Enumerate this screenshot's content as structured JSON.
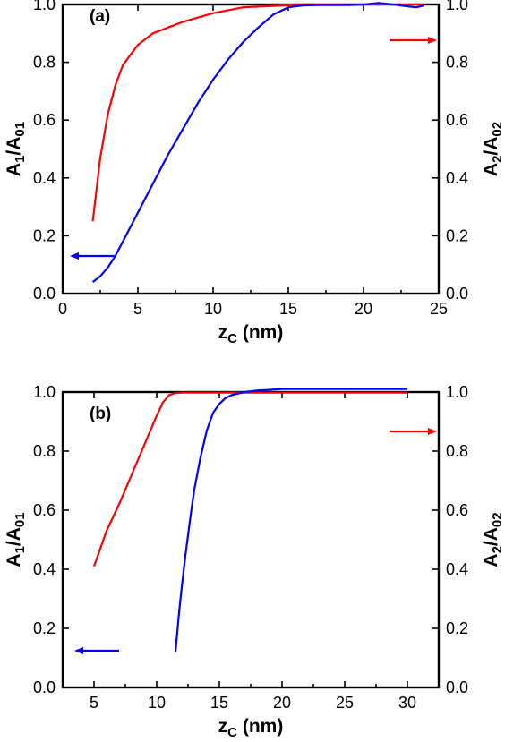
{
  "chart_data": [
    {
      "type": "line",
      "panel_label": "(a)",
      "xlim": [
        0,
        25
      ],
      "ylim": [
        0,
        1.0
      ],
      "x_ticks": [
        0,
        5,
        10,
        15,
        20,
        25
      ],
      "y_ticks": [
        0.0,
        0.2,
        0.4,
        0.6,
        0.8,
        1.0
      ],
      "xlabel": {
        "main": "z",
        "sub": "C",
        "unit": " (nm)"
      },
      "ylabel_left": {
        "a": "A",
        "a_sub": "1",
        "slash": "/A",
        "b_sub": "01"
      },
      "ylabel_right": {
        "a": "A",
        "a_sub": "2",
        "slash": "/A",
        "b_sub": "02"
      },
      "series": [
        {
          "color": "#ff0000",
          "axis": "right",
          "x": [
            2.0,
            2.5,
            3.0,
            3.5,
            4.0,
            5.0,
            6.0,
            7.0,
            8.0,
            10.0,
            12.0,
            14.0,
            16.0,
            18.0,
            20.0,
            22.0,
            24.0
          ],
          "y": [
            0.25,
            0.47,
            0.62,
            0.72,
            0.79,
            0.86,
            0.9,
            0.92,
            0.94,
            0.97,
            0.99,
            0.995,
            1.0,
            1.0,
            1.0,
            1.0,
            1.0
          ]
        },
        {
          "color": "#0000ff",
          "axis": "left",
          "x": [
            2.0,
            2.5,
            3.0,
            3.5,
            4.0,
            5.0,
            6.0,
            7.0,
            8.0,
            9.0,
            10.0,
            11.0,
            12.0,
            13.0,
            14.0,
            15.0,
            16.0,
            17.0,
            18.0,
            19.0,
            20.0,
            21.0,
            22.0,
            23.0,
            23.5,
            24.0
          ],
          "y": [
            0.04,
            0.06,
            0.09,
            0.13,
            0.18,
            0.28,
            0.38,
            0.48,
            0.57,
            0.66,
            0.74,
            0.81,
            0.87,
            0.92,
            0.965,
            0.99,
            0.997,
            0.998,
            0.998,
            0.998,
            1.0,
            1.005,
            1.0,
            0.993,
            0.99,
            0.996
          ]
        }
      ],
      "arrows": [
        {
          "color": "#0000ff",
          "direction": "left",
          "points_to": "left-axis"
        },
        {
          "color": "#ff0000",
          "direction": "right",
          "points_to": "right-axis"
        }
      ]
    },
    {
      "type": "line",
      "panel_label": "(b)",
      "xlim": [
        2.5,
        32.5
      ],
      "ylim": [
        0,
        1.0
      ],
      "x_ticks": [
        5,
        10,
        15,
        20,
        25,
        30
      ],
      "y_ticks": [
        0.0,
        0.2,
        0.4,
        0.6,
        0.8,
        1.0
      ],
      "xlabel": {
        "main": "z",
        "sub": "C",
        "unit": " (nm)"
      },
      "ylabel_left": {
        "a": "A",
        "a_sub": "1",
        "slash": "/A",
        "b_sub": "01"
      },
      "ylabel_right": {
        "a": "A",
        "a_sub": "2",
        "slash": "/A",
        "b_sub": "02"
      },
      "series": [
        {
          "color": "#ff0000",
          "axis": "right",
          "x": [
            5.0,
            6.0,
            7.0,
            8.0,
            9.0,
            10.0,
            10.5,
            11.0,
            11.5,
            12.0,
            13.0,
            15.0,
            20.0,
            25.0,
            30.0
          ],
          "y": [
            0.41,
            0.53,
            0.62,
            0.72,
            0.82,
            0.92,
            0.965,
            0.99,
            0.997,
            0.998,
            0.998,
            0.998,
            0.998,
            0.998,
            0.998
          ]
        },
        {
          "color": "#0000ff",
          "axis": "left",
          "x": [
            11.5,
            11.8,
            12.0,
            12.3,
            12.7,
            13.0,
            13.5,
            14.0,
            14.5,
            15.0,
            15.5,
            16.0,
            17.0,
            18.0,
            20.0,
            25.0,
            30.0
          ],
          "y": [
            0.12,
            0.26,
            0.34,
            0.45,
            0.58,
            0.67,
            0.78,
            0.87,
            0.93,
            0.96,
            0.98,
            0.99,
            1.0,
            1.005,
            1.01,
            1.01,
            1.01
          ]
        }
      ],
      "arrows": [
        {
          "color": "#0000ff",
          "direction": "left",
          "points_to": "left-axis"
        },
        {
          "color": "#ff0000",
          "direction": "right",
          "points_to": "right-axis"
        }
      ]
    }
  ]
}
